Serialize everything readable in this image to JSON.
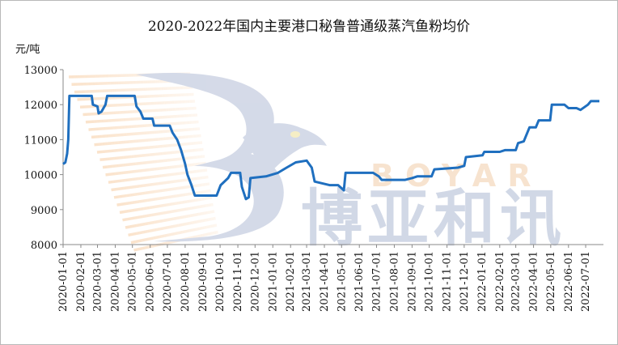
{
  "chart_data": {
    "type": "line",
    "title": "2020-2022年国内主要港口秘鲁普通级蒸汽鱼粉均价",
    "ylabel": "元/吨",
    "xlabel": "",
    "ylim": [
      8000,
      13000
    ],
    "yticks": [
      8000,
      9000,
      10000,
      11000,
      12000,
      13000
    ],
    "xticks": [
      "2020-01-01",
      "2020-02-01",
      "2020-03-01",
      "2020-04-01",
      "2020-05-01",
      "2020-06-01",
      "2020-07-01",
      "2020-08-01",
      "2020-09-01",
      "2020-10-01",
      "2020-11-01",
      "2020-12-01",
      "2021-01-01",
      "2021-02-01",
      "2021-03-01",
      "2021-04-01",
      "2021-05-01",
      "2021-06-01",
      "2021-07-01",
      "2021-08-01",
      "2021-09-01",
      "2021-10-01",
      "2021-11-01",
      "2021-12-01",
      "2022-01-01",
      "2022-02-01",
      "2022-03-01",
      "2022-04-01",
      "2022-05-01",
      "2022-06-01",
      "2022-07-01"
    ],
    "grid": false,
    "line_color": "#1f6fbf",
    "series": [
      {
        "name": "",
        "points": [
          [
            "2020-01-01",
            10300
          ],
          [
            "2020-01-05",
            10350
          ],
          [
            "2020-01-08",
            10600
          ],
          [
            "2020-01-10",
            11000
          ],
          [
            "2020-01-12",
            12250
          ],
          [
            "2020-02-20",
            12250
          ],
          [
            "2020-02-22",
            12000
          ],
          [
            "2020-03-01",
            11950
          ],
          [
            "2020-03-03",
            11750
          ],
          [
            "2020-03-08",
            11800
          ],
          [
            "2020-03-15",
            12000
          ],
          [
            "2020-03-18",
            12250
          ],
          [
            "2020-05-05",
            12250
          ],
          [
            "2020-05-08",
            11950
          ],
          [
            "2020-05-15",
            11800
          ],
          [
            "2020-05-20",
            11600
          ],
          [
            "2020-06-05",
            11600
          ],
          [
            "2020-06-08",
            11400
          ],
          [
            "2020-07-05",
            11400
          ],
          [
            "2020-07-10",
            11200
          ],
          [
            "2020-07-18",
            11000
          ],
          [
            "2020-07-25",
            10700
          ],
          [
            "2020-08-01",
            10300
          ],
          [
            "2020-08-05",
            10000
          ],
          [
            "2020-08-12",
            9700
          ],
          [
            "2020-08-18",
            9400
          ],
          [
            "2020-09-25",
            9400
          ],
          [
            "2020-10-02",
            9700
          ],
          [
            "2020-10-15",
            9900
          ],
          [
            "2020-10-20",
            10050
          ],
          [
            "2020-11-05",
            10050
          ],
          [
            "2020-11-08",
            9650
          ],
          [
            "2020-11-15",
            9300
          ],
          [
            "2020-11-20",
            9350
          ],
          [
            "2020-11-23",
            9900
          ],
          [
            "2020-12-20",
            9950
          ],
          [
            "2021-01-10",
            10050
          ],
          [
            "2021-01-25",
            10200
          ],
          [
            "2021-02-10",
            10350
          ],
          [
            "2021-03-01",
            10400
          ],
          [
            "2021-03-10",
            10200
          ],
          [
            "2021-03-15",
            9800
          ],
          [
            "2021-04-10",
            9700
          ],
          [
            "2021-04-25",
            9700
          ],
          [
            "2021-05-05",
            9550
          ],
          [
            "2021-05-08",
            10050
          ],
          [
            "2021-06-25",
            10050
          ],
          [
            "2021-07-05",
            9950
          ],
          [
            "2021-07-10",
            9850
          ],
          [
            "2021-08-20",
            9850
          ],
          [
            "2021-09-01",
            9900
          ],
          [
            "2021-09-10",
            9950
          ],
          [
            "2021-10-05",
            9950
          ],
          [
            "2021-10-10",
            10150
          ],
          [
            "2021-11-20",
            10200
          ],
          [
            "2021-12-01",
            10250
          ],
          [
            "2021-12-04",
            10500
          ],
          [
            "2022-01-02",
            10550
          ],
          [
            "2022-01-05",
            10650
          ],
          [
            "2022-02-01",
            10650
          ],
          [
            "2022-02-10",
            10700
          ],
          [
            "2022-03-01",
            10700
          ],
          [
            "2022-03-05",
            10900
          ],
          [
            "2022-03-15",
            10950
          ],
          [
            "2022-03-25",
            11350
          ],
          [
            "2022-04-05",
            11350
          ],
          [
            "2022-04-10",
            11550
          ],
          [
            "2022-04-30",
            11550
          ],
          [
            "2022-05-03",
            12000
          ],
          [
            "2022-05-25",
            12000
          ],
          [
            "2022-06-01",
            11900
          ],
          [
            "2022-06-15",
            11900
          ],
          [
            "2022-06-22",
            11850
          ],
          [
            "2022-07-05",
            12000
          ],
          [
            "2022-07-10",
            12100
          ],
          [
            "2022-07-25",
            12100
          ]
        ]
      }
    ]
  },
  "watermark": {
    "latin": "BOYAR",
    "chinese": "博亚和讯"
  }
}
